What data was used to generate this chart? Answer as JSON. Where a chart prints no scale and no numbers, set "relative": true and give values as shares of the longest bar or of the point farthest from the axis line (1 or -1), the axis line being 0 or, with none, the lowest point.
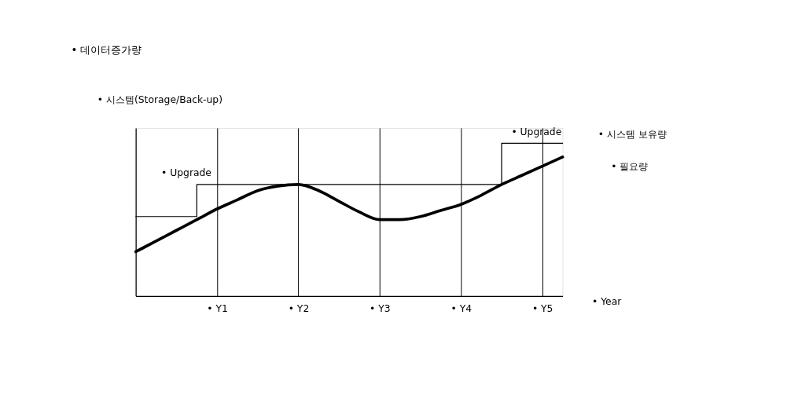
{
  "chart_data": {
    "type": "line",
    "title": "• 데이터증가량",
    "ylabel": "• 시스템(Storage/Back-up)",
    "xlabel": "• Year",
    "relative": true,
    "categories": [
      null,
      null,
      null,
      null,
      "• Y1",
      null,
      null,
      null,
      "• Y2",
      null,
      null,
      null,
      "• Y3",
      null,
      null,
      null,
      "• Y4",
      null,
      null,
      null,
      "• Y5",
      null
    ],
    "grid": "x",
    "series": [
      {
        "name": "• 시스템 보유량",
        "type": "step",
        "color": "#000000",
        "values": [
          0.52,
          0.52,
          0.52,
          0.73,
          0.73,
          0.73,
          0.73,
          0.73,
          0.73,
          0.73,
          0.73,
          0.73,
          0.73,
          0.73,
          0.73,
          0.73,
          0.73,
          0.73,
          1.0,
          1.0,
          1.0,
          1.0
        ]
      },
      {
        "name": "• 필요량",
        "color": "#000000",
        "values": [
          0.29,
          0.36,
          0.43,
          0.5,
          0.57,
          0.63,
          0.69,
          0.72,
          0.73,
          0.69,
          0.62,
          0.55,
          0.5,
          0.5,
          0.52,
          0.56,
          0.6,
          0.66,
          0.73,
          0.79,
          0.85,
          0.91
        ]
      }
    ],
    "annotations": [
      "• Upgrade",
      "• Upgrade"
    ]
  }
}
